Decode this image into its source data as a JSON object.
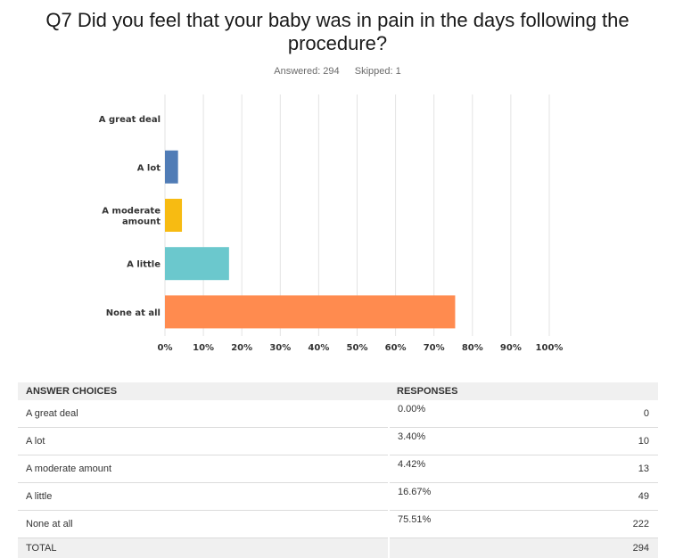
{
  "title_lines": [
    "Q7 Did you feel that your baby was in pain in the days following the",
    "procedure?"
  ],
  "answered_text": "Answered: 294",
  "skipped_text": "Skipped: 1",
  "chart_data": {
    "type": "bar",
    "orientation": "horizontal",
    "categories": [
      "A great deal",
      "A lot",
      "A moderate amount",
      "A little",
      "None at all"
    ],
    "values": [
      0.0,
      3.4,
      4.42,
      16.67,
      75.51
    ],
    "colors": [
      "#2a9fd6",
      "#507cb6",
      "#f7bb12",
      "#6bc8cd",
      "#ff8b4f"
    ],
    "x_ticks": [
      "0%",
      "10%",
      "20%",
      "30%",
      "40%",
      "50%",
      "60%",
      "70%",
      "80%",
      "90%",
      "100%"
    ],
    "xlim": [
      0,
      100
    ],
    "grid": true
  },
  "table": {
    "headers": {
      "choice": "ANSWER CHOICES",
      "responses": "RESPONSES"
    },
    "rows": [
      {
        "choice": "A great deal",
        "percent": "0.00%",
        "count": "0"
      },
      {
        "choice": "A lot",
        "percent": "3.40%",
        "count": "10"
      },
      {
        "choice": "A moderate amount",
        "percent": "4.42%",
        "count": "13"
      },
      {
        "choice": "A little",
        "percent": "16.67%",
        "count": "49"
      },
      {
        "choice": "None at all",
        "percent": "75.51%",
        "count": "222"
      }
    ],
    "total_label": "TOTAL",
    "total_count": "294"
  }
}
